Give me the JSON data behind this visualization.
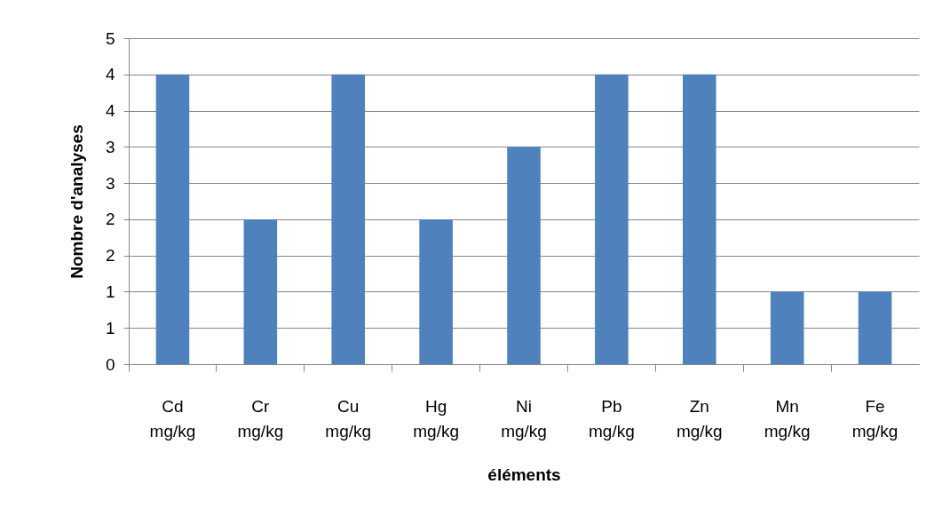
{
  "chart_data": {
    "type": "bar",
    "xlabel": "éléments",
    "ylabel": "Nombre d'analyses",
    "categories": [
      "Cd mg/kg",
      "Cr mg/kg",
      "Cu mg/kg",
      "Hg mg/kg",
      "Ni mg/kg",
      "Pb mg/kg",
      "Zn mg/kg",
      "Mn mg/kg",
      "Fe mg/kg"
    ],
    "values": [
      4,
      2,
      4,
      2,
      3,
      4,
      4,
      1,
      1
    ],
    "color": "#4f81bd",
    "ylim": [
      0,
      4.5
    ],
    "yticks": [
      {
        "value": 0,
        "label": "0"
      },
      {
        "value": 0.5,
        "label": "1"
      },
      {
        "value": 1,
        "label": "1"
      },
      {
        "value": 1.5,
        "label": "2"
      },
      {
        "value": 2,
        "label": "2"
      },
      {
        "value": 2.5,
        "label": "3"
      },
      {
        "value": 3,
        "label": "3"
      },
      {
        "value": 3.5,
        "label": "4"
      },
      {
        "value": 4,
        "label": "4"
      },
      {
        "value": 4.5,
        "label": "5"
      }
    ],
    "grid": "y"
  }
}
